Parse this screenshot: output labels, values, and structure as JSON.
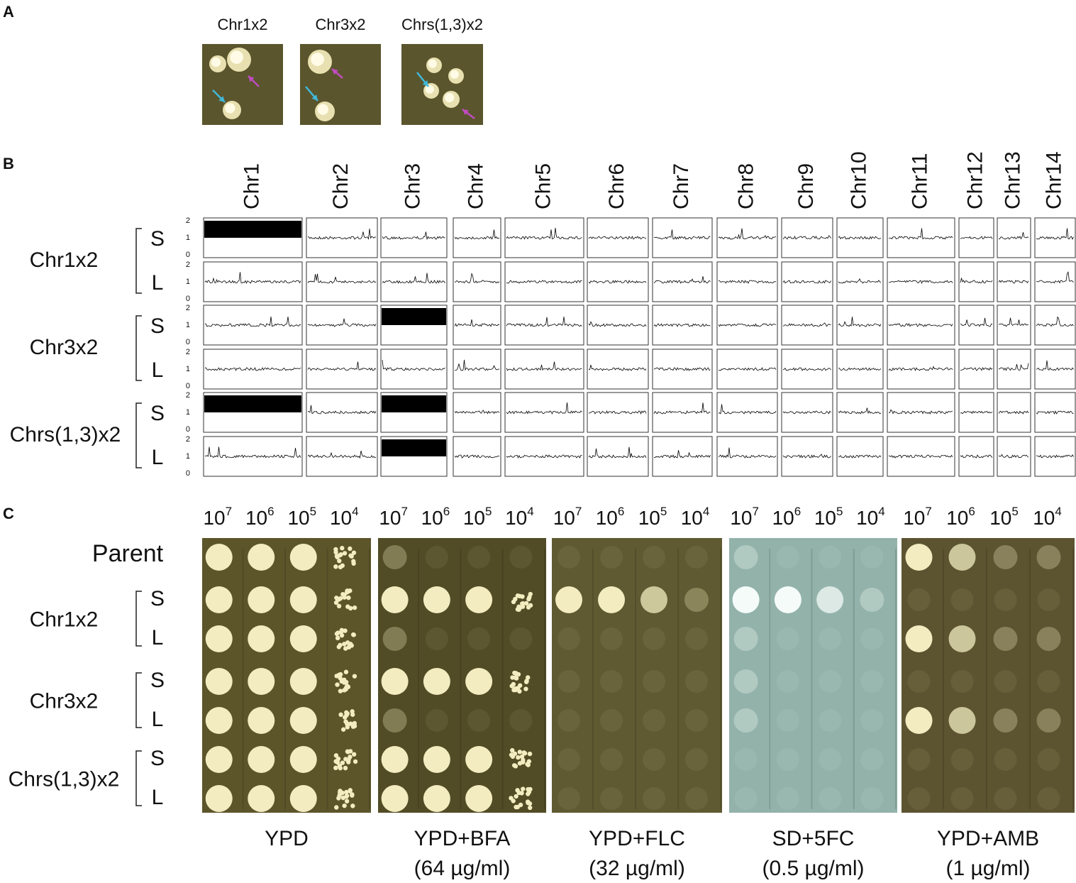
{
  "panel_a": {
    "label": "A",
    "images": [
      "Chr1x2",
      "Chr3x2",
      "Chrs(1,3)x2"
    ]
  },
  "panel_b": {
    "label": "B",
    "chromosomes": [
      "Chr1",
      "Chr2",
      "Chr3",
      "Chr4",
      "Chr5",
      "Chr6",
      "Chr7",
      "Chr8",
      "Chr9",
      "Chr10",
      "Chr11",
      "Chr12",
      "Chr13",
      "Chr14"
    ],
    "ylim": [
      0,
      2
    ],
    "yticks": [
      0,
      1,
      2
    ],
    "strains": [
      {
        "name": "Chr1x2",
        "rows": [
          {
            "label": "S",
            "copy_number": [
              2,
              1,
              1,
              1,
              1,
              1,
              1,
              1,
              1,
              1,
              1,
              1,
              1,
              1
            ]
          },
          {
            "label": "L",
            "copy_number": [
              1,
              1,
              1,
              1,
              1,
              1,
              1,
              1,
              1,
              1,
              1,
              1,
              1,
              1
            ]
          }
        ]
      },
      {
        "name": "Chr3x2",
        "rows": [
          {
            "label": "S",
            "copy_number": [
              1,
              1,
              2,
              1,
              1,
              1,
              1,
              1,
              1,
              1,
              1,
              1,
              1,
              1
            ]
          },
          {
            "label": "L",
            "copy_number": [
              1,
              1,
              1,
              1,
              1,
              1,
              1,
              1,
              1,
              1,
              1,
              1,
              1,
              1
            ]
          }
        ]
      },
      {
        "name": "Chrs(1,3)x2",
        "rows": [
          {
            "label": "S",
            "copy_number": [
              2,
              1,
              2,
              1,
              1,
              1,
              1,
              1,
              1,
              1,
              1,
              1,
              1,
              1
            ]
          },
          {
            "label": "L",
            "copy_number": [
              1,
              1,
              2,
              1,
              1,
              1,
              1,
              1,
              1,
              1,
              1,
              1,
              1,
              1
            ]
          }
        ]
      }
    ]
  },
  "panel_c": {
    "label": "C",
    "dilution_base": "10",
    "dilution_exponents": [
      "7",
      "6",
      "5",
      "4"
    ],
    "parent": "Parent",
    "strains": [
      {
        "name": "Chr1x2",
        "sublabels": [
          "S",
          "L"
        ]
      },
      {
        "name": "Chr3x2",
        "sublabels": [
          "S",
          "L"
        ]
      },
      {
        "name": "Chrs(1,3)x2",
        "sublabels": [
          "S",
          "L"
        ]
      }
    ],
    "media": [
      {
        "name": "YPD"
      },
      {
        "name": "YPD+BFA",
        "concentration": "(64 µg/ml)"
      },
      {
        "name": "YPD+FLC",
        "concentration": "(32 µg/ml)"
      },
      {
        "name": "SD+5FC",
        "concentration": "(0.5 µg/ml)"
      },
      {
        "name": "YPD+AMB",
        "concentration": "(1 µg/ml)"
      }
    ]
  }
}
